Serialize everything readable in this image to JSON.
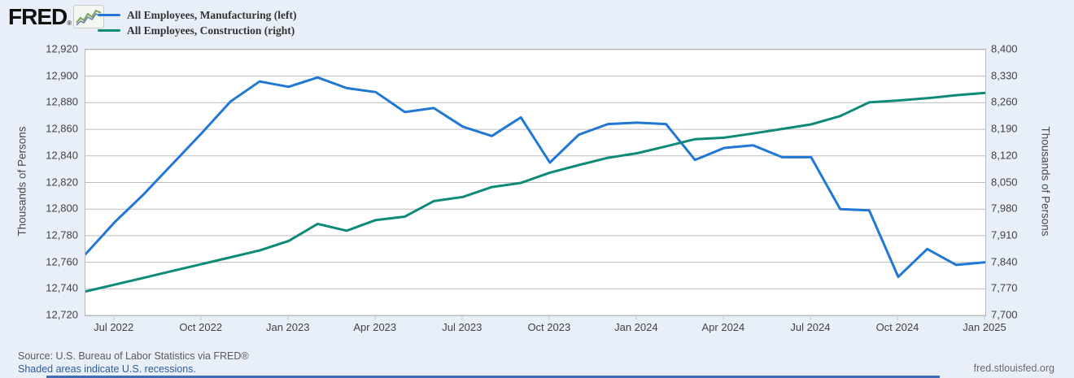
{
  "branding": {
    "logo_text": "FRED",
    "registered_mark": "®",
    "site_url": "fred.stlouisfed.org"
  },
  "legend": {
    "items": [
      {
        "label": "All Employees, Manufacturing (left)",
        "color": "#2077d4"
      },
      {
        "label": "All Employees, Construction (right)",
        "color": "#0e8a76"
      }
    ]
  },
  "left_axis": {
    "title": "Thousands of Persons",
    "tick_labels": [
      "12,920",
      "12,900",
      "12,880",
      "12,860",
      "12,840",
      "12,820",
      "12,800",
      "12,780",
      "12,760",
      "12,740",
      "12,720"
    ]
  },
  "right_axis": {
    "title": "Thousands of Persons",
    "tick_labels": [
      "8,400",
      "8,330",
      "8,260",
      "8,190",
      "8,120",
      "8,050",
      "7,980",
      "7,910",
      "7,840",
      "7,770",
      "7,700"
    ]
  },
  "x_axis": {
    "tick_labels": [
      "Jul 2022",
      "Oct 2022",
      "Jan 2023",
      "Apr 2023",
      "Jul 2023",
      "Oct 2023",
      "Jan 2024",
      "Apr 2024",
      "Jul 2024",
      "Oct 2024",
      "Jan 2025"
    ],
    "tick_month_indices": [
      1,
      4,
      7,
      10,
      13,
      16,
      19,
      22,
      25,
      28,
      31
    ]
  },
  "footer": {
    "source_line": "Source: U.S. Bureau of Labor Statistics via FRED®",
    "recession_note": "Shaded areas indicate U.S. recessions."
  },
  "colors": {
    "background": "#e9eff8",
    "plot_background": "#ffffff",
    "gridline": "#bcbcbc",
    "manufacturing_line": "#2077d4",
    "construction_line": "#0e8a76",
    "bottom_bar": "#3f6eb4"
  },
  "chart_data": {
    "type": "line",
    "title": "",
    "xlabel": "",
    "ylabel_left": "Thousands of Persons",
    "ylabel_right": "Thousands of Persons",
    "grid": "horizontal",
    "legend_position": "top-left",
    "left_ylim": [
      12720,
      12920
    ],
    "right_ylim": [
      7700,
      8400
    ],
    "x": [
      "Jun 2022",
      "Jul 2022",
      "Aug 2022",
      "Sep 2022",
      "Oct 2022",
      "Nov 2022",
      "Dec 2022",
      "Jan 2023",
      "Feb 2023",
      "Mar 2023",
      "Apr 2023",
      "May 2023",
      "Jun 2023",
      "Jul 2023",
      "Aug 2023",
      "Sep 2023",
      "Oct 2023",
      "Nov 2023",
      "Dec 2023",
      "Jan 2024",
      "Feb 2024",
      "Mar 2024",
      "Apr 2024",
      "May 2024",
      "Jun 2024",
      "Jul 2024",
      "Aug 2024",
      "Sep 2024",
      "Oct 2024",
      "Nov 2024",
      "Dec 2024",
      "Jan 2025"
    ],
    "series": [
      {
        "name": "All Employees, Manufacturing (left)",
        "axis": "left",
        "color": "#2077d4",
        "values": [
          12766,
          12790,
          12811,
          12834,
          12857,
          12881,
          12896,
          12892,
          12899,
          12891,
          12888,
          12873,
          12876,
          12862,
          12855,
          12869,
          12835,
          12856,
          12864,
          12865,
          12864,
          12837,
          12846,
          12848,
          12839,
          12839,
          12800,
          12799,
          12749,
          12770,
          12758,
          12760
        ]
      },
      {
        "name": "All Employees, Construction (right)",
        "axis": "right",
        "color": "#0e8a76",
        "values": [
          7763,
          7781,
          7799,
          7817,
          7835,
          7853,
          7871,
          7896,
          7941,
          7923,
          7951,
          7960,
          8001,
          8012,
          8038,
          8049,
          8076,
          8096,
          8115,
          8127,
          8145,
          8164,
          8168,
          8179,
          8191,
          8203,
          8225,
          8261,
          8266,
          8272,
          8280,
          8286
        ]
      }
    ]
  }
}
